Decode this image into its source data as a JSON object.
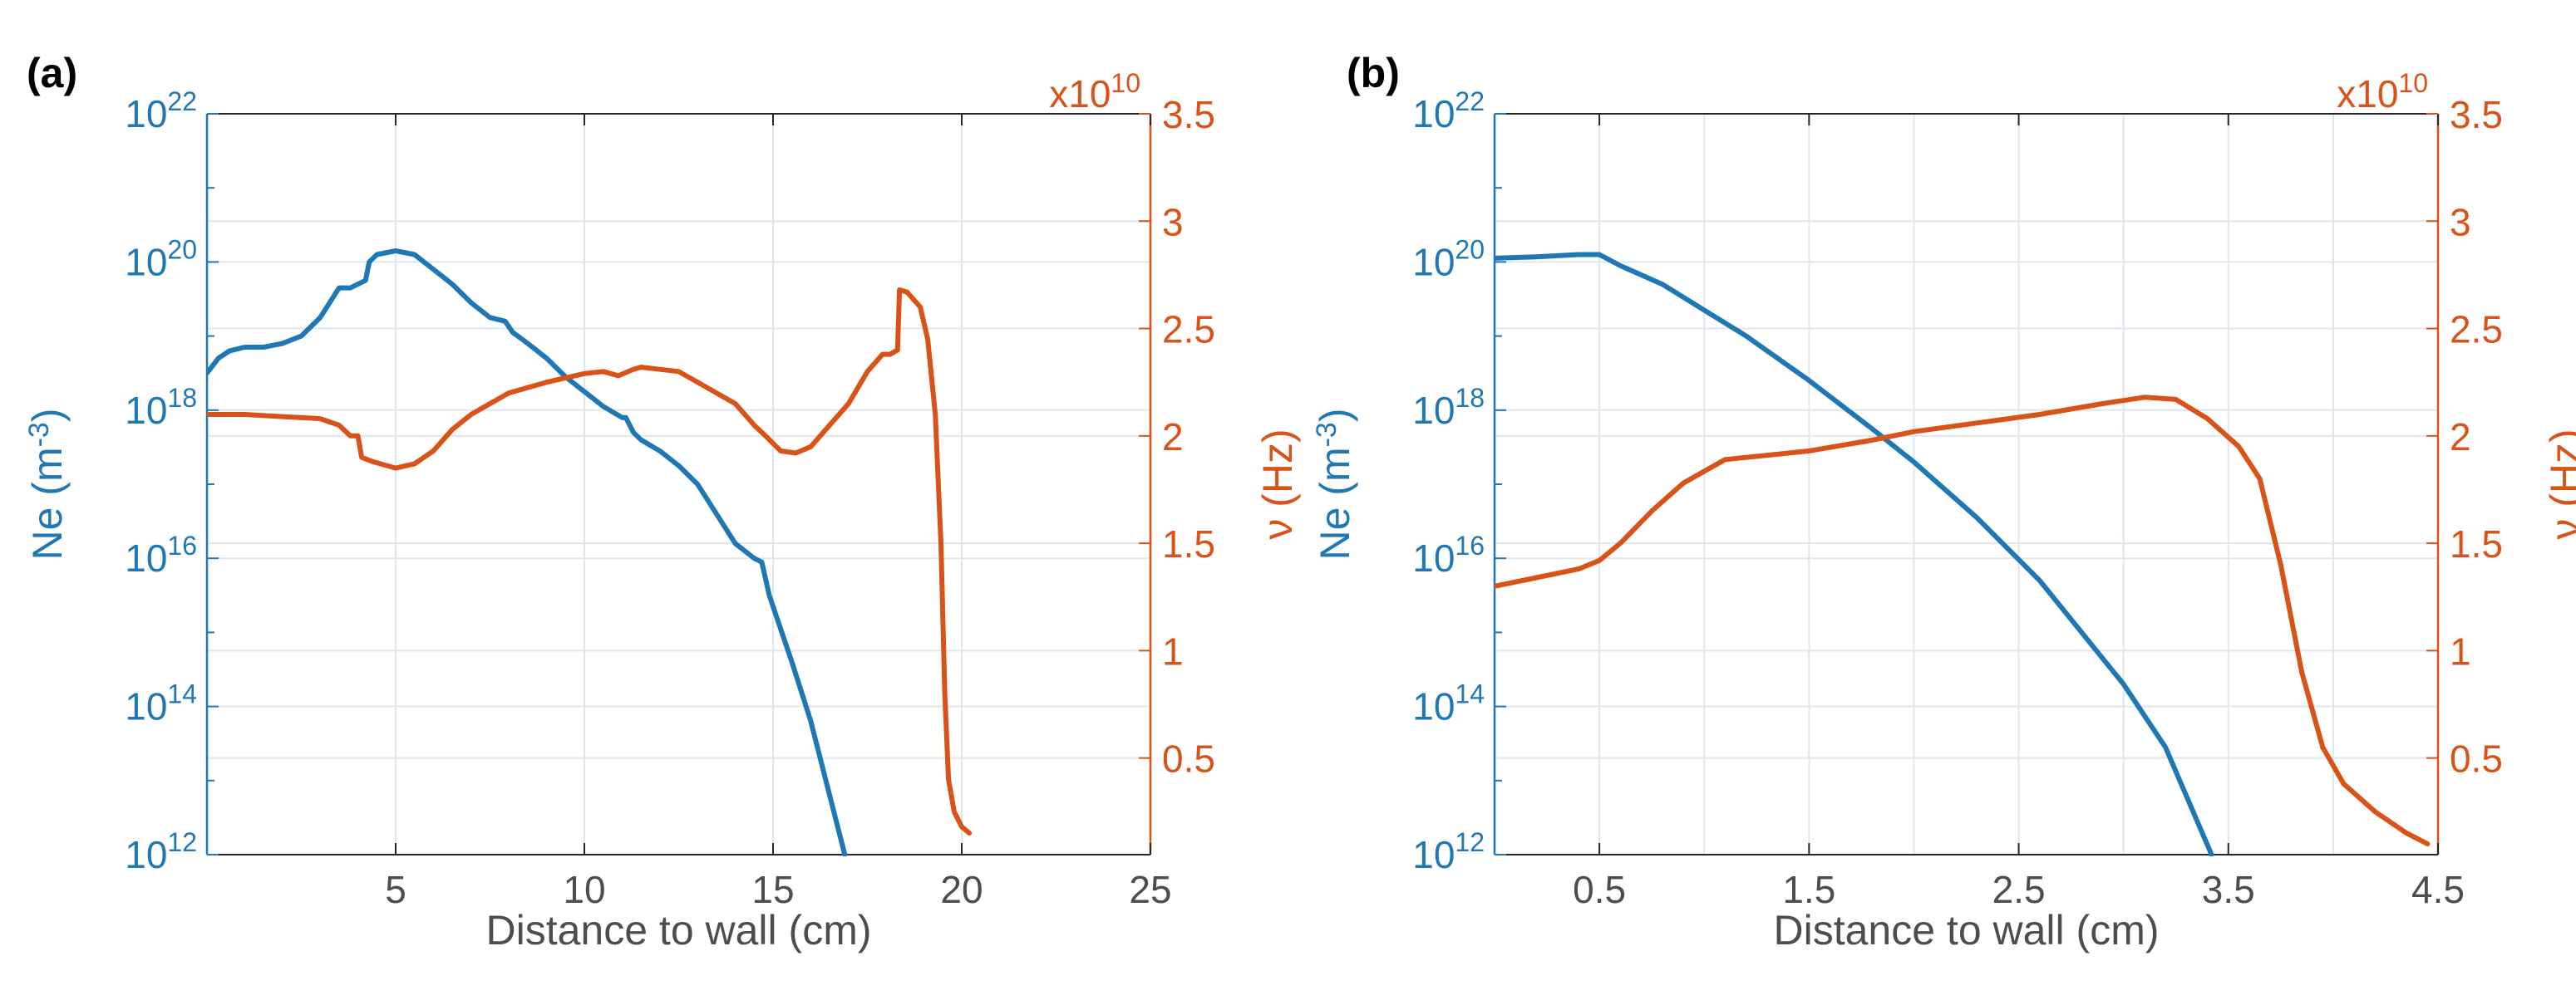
{
  "colors": {
    "ne": "#1f77b4",
    "nu": "#d95319",
    "axis_text": "#4d4d4d",
    "grid": "#dfe6ee",
    "frame": "#262626"
  },
  "chart_data": [
    {
      "type": "line",
      "panel_label": "(a)",
      "xlabel": "Distance to wall (cm)",
      "xlim": [
        0,
        25
      ],
      "xticks": [
        5,
        10,
        15,
        20,
        25
      ],
      "xtick_labels": [
        "5",
        "10",
        "15",
        "20",
        "25"
      ],
      "y_left": {
        "label_main": "Ne (m",
        "label_sup": "-3",
        "label_end": ")",
        "scale": "log",
        "lim_exp": [
          12,
          22
        ],
        "tick_exps": [
          12,
          14,
          16,
          18,
          20,
          22
        ],
        "tick_base": "10"
      },
      "y_right": {
        "label": "ν (Hz)",
        "multiplier_prefix": "x10",
        "multiplier_exp": "10",
        "lim": [
          0.05,
          3.5
        ],
        "ticks": [
          0.5,
          1,
          1.5,
          2,
          2.5,
          3,
          3.5
        ],
        "tick_labels": [
          "0.5",
          "1",
          "1.5",
          "2",
          "2.5",
          "3",
          "3.5"
        ]
      },
      "series": [
        {
          "name": "Ne",
          "axis": "left",
          "x": [
            0,
            0.3,
            0.6,
            1,
            1.5,
            2,
            2.5,
            3,
            3.5,
            3.8,
            4.2,
            4.3,
            4.5,
            5,
            5.5,
            6,
            6.5,
            7,
            7.5,
            7.9,
            8.1,
            8.5,
            9,
            9.5,
            10,
            10.5,
            11,
            11.1,
            11.3,
            11.5,
            12,
            12.5,
            13,
            13.5,
            14,
            14.5,
            14.7,
            14.9,
            15.1,
            15.5,
            16,
            16.5,
            16.9
          ],
          "y_exp": [
            18.5,
            18.7,
            18.8,
            18.85,
            18.85,
            18.9,
            19.0,
            19.25,
            19.65,
            19.65,
            19.75,
            20.0,
            20.1,
            20.15,
            20.1,
            19.9,
            19.7,
            19.45,
            19.25,
            19.2,
            19.05,
            18.9,
            18.7,
            18.45,
            18.25,
            18.05,
            17.9,
            17.9,
            17.7,
            17.6,
            17.45,
            17.25,
            17.0,
            16.6,
            16.2,
            16.0,
            15.95,
            15.5,
            15.2,
            14.6,
            13.8,
            12.8,
            12.0
          ]
        },
        {
          "name": "ν",
          "axis": "right",
          "x": [
            0,
            0.5,
            1,
            2,
            3,
            3.5,
            3.8,
            4.0,
            4.1,
            4.4,
            5,
            5.5,
            6,
            6.5,
            7,
            7.5,
            8,
            9,
            10,
            10.5,
            10.9,
            11.3,
            11.5,
            12,
            12.5,
            13,
            13.5,
            14,
            14.5,
            14.8,
            15.2,
            15.6,
            16,
            16.5,
            17,
            17.5,
            17.9,
            18.1,
            18.3,
            18.35,
            18.55,
            18.9,
            19.1,
            19.3,
            19.45,
            19.55,
            19.65,
            19.8,
            20.0,
            20.2
          ],
          "y": [
            2.1,
            2.1,
            2.1,
            2.09,
            2.08,
            2.05,
            2.0,
            2.0,
            1.9,
            1.88,
            1.85,
            1.87,
            1.93,
            2.03,
            2.1,
            2.15,
            2.2,
            2.25,
            2.29,
            2.3,
            2.28,
            2.31,
            2.32,
            2.31,
            2.3,
            2.25,
            2.2,
            2.15,
            2.05,
            2.0,
            1.93,
            1.92,
            1.95,
            2.05,
            2.15,
            2.3,
            2.38,
            2.38,
            2.4,
            2.68,
            2.67,
            2.6,
            2.45,
            2.1,
            1.5,
            0.8,
            0.4,
            0.25,
            0.18,
            0.15
          ]
        }
      ]
    },
    {
      "type": "line",
      "panel_label": "(b)",
      "xlabel": "Distance to wall (cm)",
      "xlim": [
        0,
        4.5
      ],
      "xticks": [
        0.5,
        1.5,
        2.5,
        3.5,
        4.5
      ],
      "xtick_labels": [
        "0.5",
        "1.5",
        "2.5",
        "3.5",
        "4.5"
      ],
      "minor_xgrid": [
        1,
        2,
        3,
        4
      ],
      "y_left": {
        "label_main": "Ne (m",
        "label_sup": "-3",
        "label_end": ")",
        "scale": "log",
        "lim_exp": [
          12,
          22
        ],
        "tick_exps": [
          12,
          14,
          16,
          18,
          20,
          22
        ],
        "tick_base": "10"
      },
      "y_right": {
        "label": "ν (Hz)",
        "multiplier_prefix": "x10",
        "multiplier_exp": "10",
        "lim": [
          0.05,
          3.5
        ],
        "ticks": [
          0.5,
          1,
          1.5,
          2,
          2.5,
          3,
          3.5
        ],
        "tick_labels": [
          "0.5",
          "1",
          "1.5",
          "2",
          "2.5",
          "3",
          "3.5"
        ]
      },
      "series": [
        {
          "name": "Ne",
          "axis": "left",
          "x": [
            0,
            0.2,
            0.4,
            0.5,
            0.6,
            0.8,
            1.0,
            1.2,
            1.5,
            1.8,
            2.0,
            2.3,
            2.6,
            3.0,
            3.2,
            3.42
          ],
          "y_exp": [
            20.05,
            20.07,
            20.1,
            20.1,
            19.95,
            19.7,
            19.35,
            19.0,
            18.4,
            17.75,
            17.3,
            16.55,
            15.7,
            14.3,
            13.45,
            12.0
          ]
        },
        {
          "name": "ν",
          "axis": "right",
          "x": [
            0,
            0.2,
            0.4,
            0.5,
            0.6,
            0.75,
            0.9,
            1.1,
            1.3,
            1.5,
            1.8,
            2.0,
            2.3,
            2.6,
            2.9,
            3.1,
            3.25,
            3.4,
            3.55,
            3.65,
            3.75,
            3.85,
            3.95,
            4.05,
            4.2,
            4.35,
            4.45
          ],
          "y": [
            1.3,
            1.34,
            1.38,
            1.42,
            1.5,
            1.65,
            1.78,
            1.89,
            1.91,
            1.93,
            1.98,
            2.02,
            2.06,
            2.1,
            2.15,
            2.18,
            2.17,
            2.08,
            1.95,
            1.8,
            1.4,
            0.9,
            0.55,
            0.38,
            0.25,
            0.15,
            0.1
          ]
        }
      ]
    }
  ]
}
